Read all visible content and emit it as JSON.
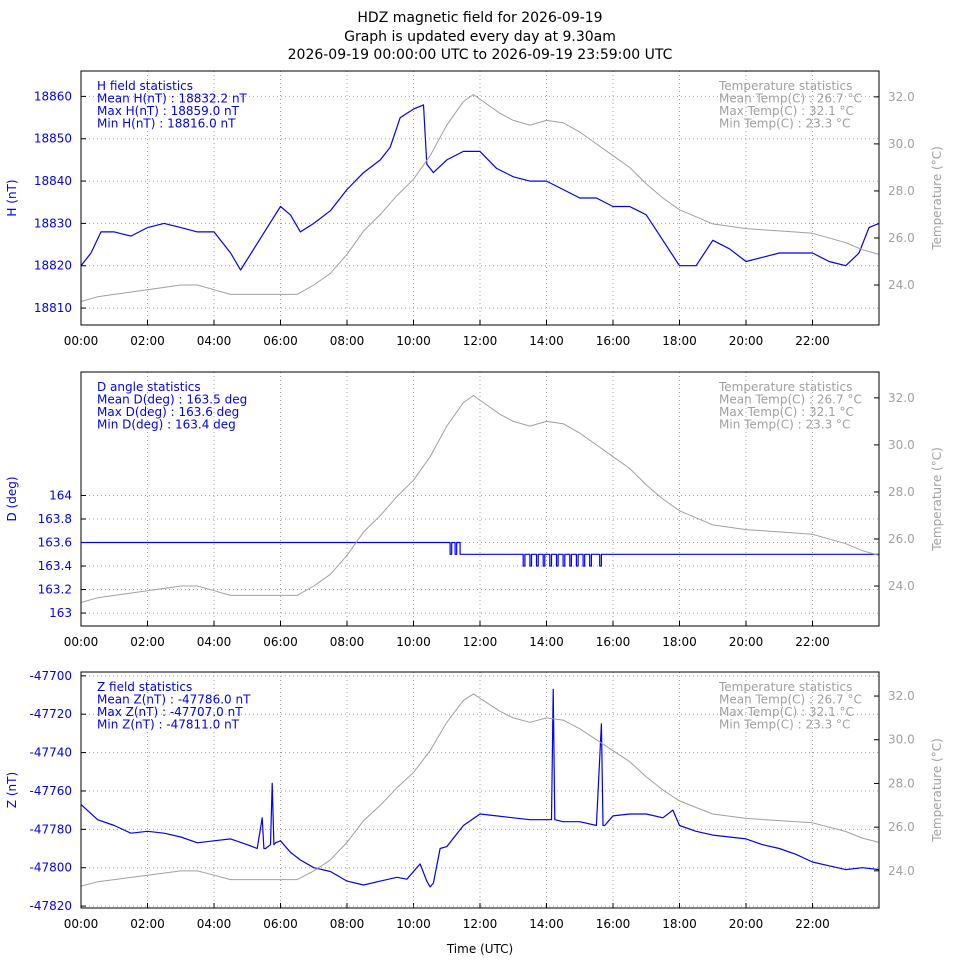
{
  "colors": {
    "field": "#0000ff",
    "temperature": "#a0a0a0",
    "grid": "#a0a0a0",
    "frame": "#000000"
  },
  "title_lines": [
    "HDZ magnetic field for 2026-09-19",
    "Graph is updated every day at 9.30am",
    "2026-09-19 00:00:00 UTC to 2026-09-19 23:59:00 UTC"
  ],
  "xlabel": "Time (UTC)",
  "chart_data": [
    {
      "type": "line",
      "ylabel": "H (nT)",
      "y2label": "Temperature (°C)",
      "xlim": [
        0,
        24
      ],
      "ylim": [
        18806,
        18866
      ],
      "y2lim": [
        22.3,
        33.1
      ],
      "xticks": [
        "00:00",
        "02:00",
        "04:00",
        "06:00",
        "08:00",
        "10:00",
        "12:00",
        "14:00",
        "16:00",
        "18:00",
        "20:00",
        "22:00"
      ],
      "yticks": [
        {
          "v": 18810,
          "label": "18810"
        },
        {
          "v": 18820,
          "label": "18820"
        },
        {
          "v": 18830,
          "label": "18830"
        },
        {
          "v": 18840,
          "label": "18840"
        },
        {
          "v": 18850,
          "label": "18850"
        },
        {
          "v": 18860,
          "label": "18860"
        }
      ],
      "y2ticks": [
        {
          "v": 24,
          "label": "24.0"
        },
        {
          "v": 26,
          "label": "26.0"
        },
        {
          "v": 28,
          "label": "28.0"
        },
        {
          "v": 30,
          "label": "30.0"
        },
        {
          "v": 32,
          "label": "32.0"
        }
      ],
      "stats": [
        "H field statistics",
        "Mean H(nT) : 18832.2 nT",
        "Max H(nT) : 18859.0 nT",
        "Min H(nT) : 18816.0 nT"
      ],
      "temp_stats": [
        "Temperature statistics",
        "Mean Temp(C) : 26.7 °C",
        "Max Temp(C) : 32.1 °C",
        "Min Temp(C) : 23.3 °C"
      ],
      "series": [
        {
          "name": "H (nT)",
          "axis": "y",
          "x": [
            0,
            0.3,
            0.6,
            1.0,
            1.5,
            2.0,
            2.5,
            3.0,
            3.5,
            4.0,
            4.5,
            4.8,
            5.2,
            5.6,
            6.0,
            6.3,
            6.6,
            7.0,
            7.5,
            8.0,
            8.5,
            9.0,
            9.3,
            9.6,
            10.0,
            10.3,
            10.4,
            10.6,
            11.0,
            11.5,
            12.0,
            12.5,
            13.0,
            13.5,
            14.0,
            14.5,
            15.0,
            15.5,
            16.0,
            16.5,
            17.0,
            17.5,
            18.0,
            18.5,
            19.0,
            19.5,
            20.0,
            20.5,
            21.0,
            21.5,
            22.0,
            22.5,
            23.0,
            23.4,
            23.7,
            24.0
          ],
          "values": [
            18820,
            18823,
            18828,
            18828,
            18827,
            18829,
            18830,
            18829,
            18828,
            18828,
            18823,
            18819,
            18824,
            18829,
            18834,
            18832,
            18828,
            18830,
            18833,
            18838,
            18842,
            18845,
            18848,
            18855,
            18857,
            18858,
            18844,
            18842,
            18845,
            18847,
            18847,
            18843,
            18841,
            18840,
            18840,
            18838,
            18836,
            18836,
            18834,
            18834,
            18832,
            18826,
            18820,
            18820,
            18826,
            18824,
            18821,
            18822,
            18823,
            18823,
            18823,
            18821,
            18820,
            18823,
            18829,
            18830
          ]
        },
        {
          "name": "Temperature (°C)",
          "axis": "y2",
          "x": [
            0,
            0.5,
            1.0,
            2.0,
            3.0,
            3.5,
            4.0,
            4.5,
            5.0,
            5.5,
            6.0,
            6.5,
            7.0,
            7.5,
            8.0,
            8.5,
            9.0,
            9.5,
            10.0,
            10.5,
            11.0,
            11.5,
            11.8,
            12.2,
            12.6,
            13.0,
            13.5,
            14.0,
            14.5,
            15.0,
            15.5,
            16.0,
            16.5,
            17.0,
            17.5,
            18.0,
            18.5,
            19.0,
            20.0,
            21.0,
            22.0,
            23.0,
            23.5,
            24.0
          ],
          "values": [
            23.3,
            23.5,
            23.6,
            23.8,
            24.0,
            24.0,
            23.8,
            23.6,
            23.6,
            23.6,
            23.6,
            23.6,
            24.0,
            24.5,
            25.3,
            26.3,
            27.0,
            27.8,
            28.5,
            29.5,
            30.8,
            31.8,
            32.1,
            31.7,
            31.3,
            31.0,
            30.8,
            31.0,
            30.9,
            30.5,
            30.0,
            29.5,
            29.0,
            28.3,
            27.7,
            27.2,
            26.9,
            26.6,
            26.4,
            26.3,
            26.2,
            25.8,
            25.5,
            25.3
          ]
        }
      ]
    },
    {
      "type": "line",
      "ylabel": "D (deg)",
      "y2label": "Temperature (°C)",
      "xlim": [
        0,
        24
      ],
      "ylim": [
        162.89,
        165.05
      ],
      "y2lim": [
        22.3,
        33.1
      ],
      "xticks": [
        "00:00",
        "02:00",
        "04:00",
        "06:00",
        "08:00",
        "10:00",
        "12:00",
        "14:00",
        "16:00",
        "18:00",
        "20:00",
        "22:00"
      ],
      "yticks": [
        {
          "v": 163.0,
          "label": "163"
        },
        {
          "v": 163.2,
          "label": "163.2"
        },
        {
          "v": 163.4,
          "label": "163.4"
        },
        {
          "v": 163.6,
          "label": "163.6"
        },
        {
          "v": 163.8,
          "label": "163.8"
        },
        {
          "v": 164.0,
          "label": "164"
        }
      ],
      "y2ticks": [
        {
          "v": 24,
          "label": "24.0"
        },
        {
          "v": 26,
          "label": "26.0"
        },
        {
          "v": 28,
          "label": "28.0"
        },
        {
          "v": 30,
          "label": "30.0"
        },
        {
          "v": 32,
          "label": "32.0"
        }
      ],
      "stats": [
        "D angle statistics",
        "Mean D(deg) : 163.5 deg",
        "Max D(deg) : 163.6 deg",
        "Min D(deg) : 163.4 deg"
      ],
      "temp_stats": [
        "Temperature statistics",
        "Mean Temp(C) : 26.7 °C",
        "Max Temp(C) : 32.1 °C",
        "Min Temp(C) : 23.3 °C"
      ],
      "series": [
        {
          "name": "D (deg)",
          "axis": "y",
          "x": [
            0,
            11.1,
            11.1,
            11.15,
            11.15,
            11.25,
            11.25,
            11.3,
            11.3,
            11.4,
            11.4,
            13.3,
            13.3,
            13.35,
            13.35,
            13.5,
            13.5,
            13.55,
            13.55,
            13.7,
            13.7,
            13.75,
            13.75,
            13.9,
            13.9,
            13.95,
            13.95,
            14.1,
            14.1,
            14.15,
            14.15,
            14.3,
            14.3,
            14.35,
            14.35,
            14.5,
            14.5,
            14.55,
            14.55,
            14.7,
            14.7,
            14.75,
            14.75,
            14.9,
            14.9,
            14.95,
            14.95,
            15.1,
            15.1,
            15.15,
            15.15,
            15.3,
            15.3,
            15.35,
            15.35,
            15.6,
            15.6,
            15.65,
            15.65,
            24
          ],
          "values": [
            163.6,
            163.6,
            163.5,
            163.5,
            163.6,
            163.6,
            163.5,
            163.5,
            163.6,
            163.6,
            163.5,
            163.5,
            163.4,
            163.4,
            163.5,
            163.5,
            163.4,
            163.4,
            163.5,
            163.5,
            163.4,
            163.4,
            163.5,
            163.5,
            163.4,
            163.4,
            163.5,
            163.5,
            163.4,
            163.4,
            163.5,
            163.5,
            163.4,
            163.4,
            163.5,
            163.5,
            163.4,
            163.4,
            163.5,
            163.5,
            163.4,
            163.4,
            163.5,
            163.5,
            163.4,
            163.4,
            163.5,
            163.5,
            163.4,
            163.4,
            163.5,
            163.5,
            163.4,
            163.4,
            163.5,
            163.5,
            163.4,
            163.4,
            163.5,
            163.5
          ]
        },
        {
          "name": "Temperature (°C)",
          "axis": "y2",
          "x": [
            0,
            0.5,
            1.0,
            2.0,
            3.0,
            3.5,
            4.0,
            4.5,
            5.0,
            5.5,
            6.0,
            6.5,
            7.0,
            7.5,
            8.0,
            8.5,
            9.0,
            9.5,
            10.0,
            10.5,
            11.0,
            11.5,
            11.8,
            12.2,
            12.6,
            13.0,
            13.5,
            14.0,
            14.5,
            15.0,
            15.5,
            16.0,
            16.5,
            17.0,
            17.5,
            18.0,
            18.5,
            19.0,
            20.0,
            21.0,
            22.0,
            23.0,
            23.5,
            24.0
          ],
          "values": [
            23.3,
            23.5,
            23.6,
            23.8,
            24.0,
            24.0,
            23.8,
            23.6,
            23.6,
            23.6,
            23.6,
            23.6,
            24.0,
            24.5,
            25.3,
            26.3,
            27.0,
            27.8,
            28.5,
            29.5,
            30.8,
            31.8,
            32.1,
            31.7,
            31.3,
            31.0,
            30.8,
            31.0,
            30.9,
            30.5,
            30.0,
            29.5,
            29.0,
            28.3,
            27.7,
            27.2,
            26.9,
            26.6,
            26.4,
            26.3,
            26.2,
            25.8,
            25.5,
            25.3
          ]
        }
      ]
    },
    {
      "type": "line",
      "ylabel": "Z (nT)",
      "y2label": "Temperature (°C)",
      "xlim": [
        0,
        24
      ],
      "ylim": [
        -47821,
        -47698
      ],
      "y2lim": [
        22.3,
        33.1
      ],
      "xticks": [
        "00:00",
        "02:00",
        "04:00",
        "06:00",
        "08:00",
        "10:00",
        "12:00",
        "14:00",
        "16:00",
        "18:00",
        "20:00",
        "22:00"
      ],
      "yticks": [
        {
          "v": -47820,
          "label": "-47820"
        },
        {
          "v": -47800,
          "label": "-47800"
        },
        {
          "v": -47780,
          "label": "-47780"
        },
        {
          "v": -47760,
          "label": "-47760"
        },
        {
          "v": -47740,
          "label": "-47740"
        },
        {
          "v": -47720,
          "label": "-47720"
        },
        {
          "v": -47700,
          "label": "-47700"
        }
      ],
      "y2ticks": [
        {
          "v": 24,
          "label": "24.0"
        },
        {
          "v": 26,
          "label": "26.0"
        },
        {
          "v": 28,
          "label": "28.0"
        },
        {
          "v": 30,
          "label": "30.0"
        },
        {
          "v": 32,
          "label": "32.0"
        }
      ],
      "stats": [
        "Z field statistics",
        "Mean Z(nT) : -47786.0 nT",
        "Max Z(nT) : -47707.0 nT",
        "Min Z(nT) : -47811.0 nT"
      ],
      "temp_stats": [
        "Temperature statistics",
        "Mean Temp(C) : 26.7 °C",
        "Max Temp(C) : 32.1 °C",
        "Min Temp(C) : 23.3 °C"
      ],
      "series": [
        {
          "name": "Z (nT)",
          "axis": "y",
          "x": [
            0,
            0.5,
            1.0,
            1.5,
            2.0,
            2.5,
            3.0,
            3.5,
            4.0,
            4.5,
            5.0,
            5.3,
            5.45,
            5.5,
            5.55,
            5.7,
            5.75,
            5.8,
            5.85,
            6.0,
            6.3,
            6.6,
            7.0,
            7.5,
            8.0,
            8.5,
            9.0,
            9.5,
            9.8,
            10.0,
            10.2,
            10.4,
            10.5,
            10.6,
            10.8,
            11.0,
            11.5,
            12.0,
            12.5,
            13.0,
            13.5,
            14.0,
            14.15,
            14.2,
            14.25,
            14.5,
            15.0,
            15.5,
            15.65,
            15.7,
            15.75,
            15.85,
            16.0,
            16.5,
            17.0,
            17.5,
            17.8,
            18.0,
            18.5,
            19.0,
            19.5,
            20.0,
            20.5,
            21.0,
            21.5,
            22.0,
            22.5,
            23.0,
            23.5,
            24.0
          ],
          "values": [
            -47767,
            -47775,
            -47778,
            -47782,
            -47781,
            -47782,
            -47784,
            -47787,
            -47786,
            -47785,
            -47788,
            -47790,
            -47774,
            -47790,
            -47790,
            -47788,
            -47756,
            -47788,
            -47787,
            -47786,
            -47792,
            -47796,
            -47800,
            -47802,
            -47807,
            -47809,
            -47807,
            -47805,
            -47806,
            -47802,
            -47798,
            -47807,
            -47810,
            -47808,
            -47790,
            -47789,
            -47778,
            -47772,
            -47773,
            -47774,
            -47775,
            -47775,
            -47775,
            -47707,
            -47775,
            -47776,
            -47776,
            -47778,
            -47725,
            -47778,
            -47778,
            -47776,
            -47773,
            -47772,
            -47772,
            -47774,
            -47770,
            -47778,
            -47781,
            -47783,
            -47784,
            -47785,
            -47788,
            -47790,
            -47793,
            -47797,
            -47799,
            -47801,
            -47800,
            -47801
          ]
        },
        {
          "name": "Temperature (°C)",
          "axis": "y2",
          "x": [
            0,
            0.5,
            1.0,
            2.0,
            3.0,
            3.5,
            4.0,
            4.5,
            5.0,
            5.5,
            6.0,
            6.5,
            7.0,
            7.5,
            8.0,
            8.5,
            9.0,
            9.5,
            10.0,
            10.5,
            11.0,
            11.5,
            11.8,
            12.2,
            12.6,
            13.0,
            13.5,
            14.0,
            14.5,
            15.0,
            15.5,
            16.0,
            16.5,
            17.0,
            17.5,
            18.0,
            18.5,
            19.0,
            20.0,
            21.0,
            22.0,
            23.0,
            23.5,
            24.0
          ],
          "values": [
            23.3,
            23.5,
            23.6,
            23.8,
            24.0,
            24.0,
            23.8,
            23.6,
            23.6,
            23.6,
            23.6,
            23.6,
            24.0,
            24.5,
            25.3,
            26.3,
            27.0,
            27.8,
            28.5,
            29.5,
            30.8,
            31.8,
            32.1,
            31.7,
            31.3,
            31.0,
            30.8,
            31.0,
            30.9,
            30.5,
            30.0,
            29.5,
            29.0,
            28.3,
            27.7,
            27.2,
            26.9,
            26.6,
            26.4,
            26.3,
            26.2,
            25.8,
            25.5,
            25.3
          ]
        }
      ]
    }
  ]
}
